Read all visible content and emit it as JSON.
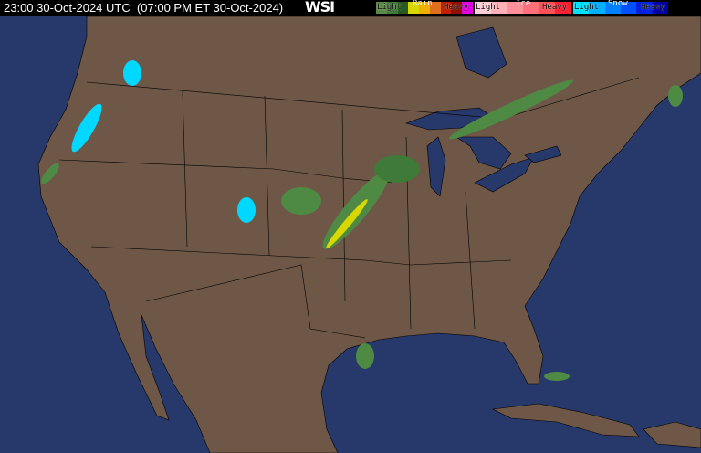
{
  "header": {
    "timestamp": "23:00 30-Oct-2024 UTC  (07:00 PM ET 30-Oct-2024)",
    "logo": "WSI"
  },
  "legend": {
    "rain": {
      "title": "Rain",
      "light": "Light",
      "heavy": "Heavy",
      "colors": [
        "#5a8a4a",
        "#3f7a38",
        "#2a5a22",
        "#d8d800",
        "#f0b000",
        "#e07020",
        "#c02000",
        "#901000",
        "#e000e0"
      ]
    },
    "ice": {
      "title": "Ice",
      "light": "Light",
      "heavy": "Heavy",
      "colors": [
        "#ffd0d8",
        "#ffb0b8",
        "#ff9098",
        "#ff7078",
        "#ff5058",
        "#ff2030"
      ]
    },
    "snow": {
      "title": "Snow",
      "light": "Light",
      "heavy": "Heavy",
      "colors": [
        "#00e0ff",
        "#00b0ff",
        "#0080ff",
        "#0050ff",
        "#0020e0",
        "#0000a0"
      ]
    }
  },
  "map_colors": {
    "water": "#27386a",
    "land": "#6e5747",
    "border": "#000000"
  }
}
